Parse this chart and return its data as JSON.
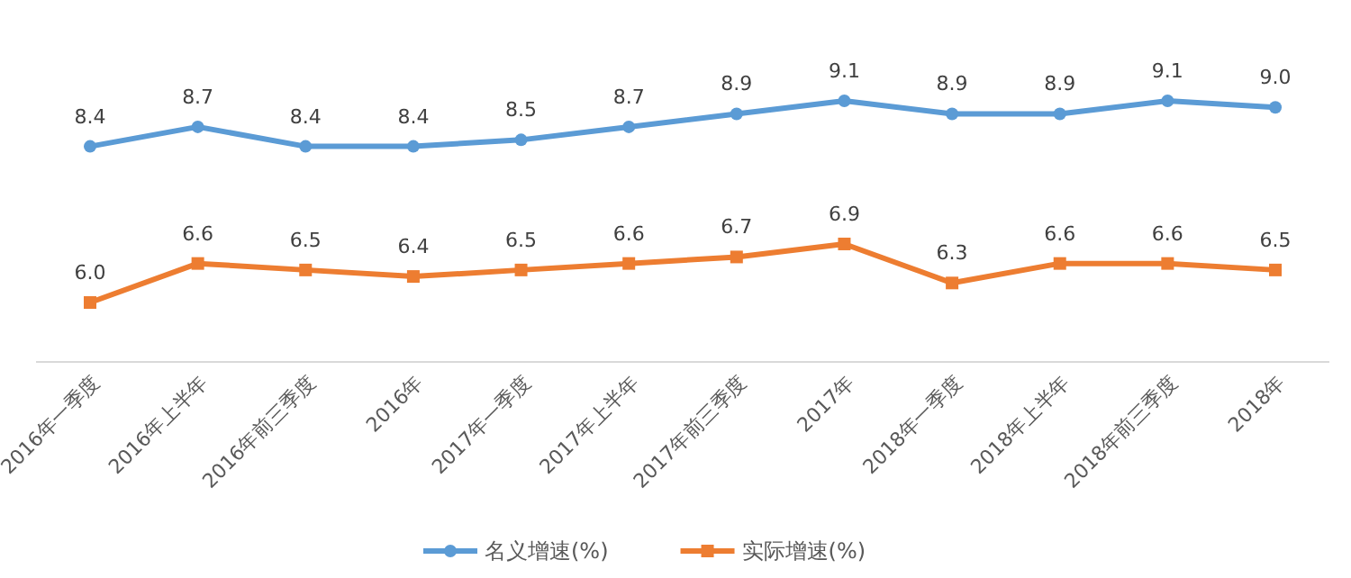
{
  "chart_data": {
    "type": "line",
    "categories": [
      "2016年一季度",
      "2016年上半年",
      "2016年前三季度",
      "2016年",
      "2017年一季度",
      "2017年上半年",
      "2017年前三季度",
      "2017年",
      "2018年一季度",
      "2018年上半年",
      "2018年前三季度",
      "2018年"
    ],
    "series": [
      {
        "name": "名义增速(%)",
        "color": "#5b9bd5",
        "marker": "circle",
        "values": [
          8.4,
          8.7,
          8.4,
          8.4,
          8.5,
          8.7,
          8.9,
          9.1,
          8.9,
          8.9,
          9.1,
          9.0
        ],
        "value_labels": [
          "8.4",
          "8.7",
          "8.4",
          "8.4",
          "8.5",
          "8.7",
          "8.9",
          "9.1",
          "8.9",
          "8.9",
          "9.1",
          "9.0"
        ]
      },
      {
        "name": "实际增速(%)",
        "color": "#ed7d31",
        "marker": "square",
        "values": [
          6.0,
          6.6,
          6.5,
          6.4,
          6.5,
          6.6,
          6.7,
          6.9,
          6.3,
          6.6,
          6.6,
          6.5
        ],
        "value_labels": [
          "6.0",
          "6.6",
          "6.5",
          "6.4",
          "6.5",
          "6.6",
          "6.7",
          "6.9",
          "6.3",
          "6.6",
          "6.6",
          "6.5"
        ]
      }
    ],
    "legend": "bottom",
    "tick_labels": "x"
  }
}
